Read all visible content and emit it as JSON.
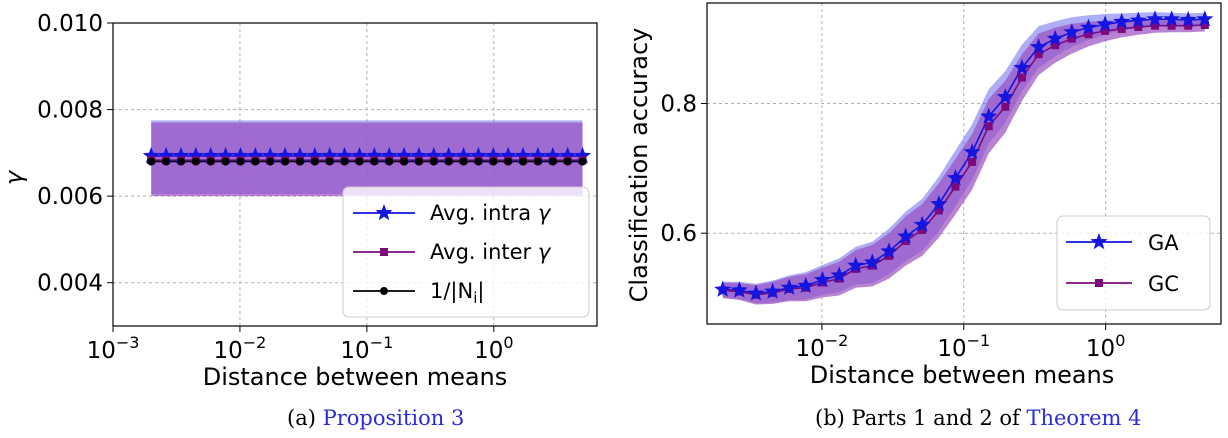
{
  "chart_data": [
    {
      "type": "line",
      "xlabel": "Distance between means",
      "ylabel": "γ",
      "xscale": "log",
      "xlim": [
        0.001,
        6.5
      ],
      "ylim": [
        0.003,
        0.01
      ],
      "xticks": [
        {
          "value": 0.001,
          "base": "10",
          "exp": "−3"
        },
        {
          "value": 0.01,
          "base": "10",
          "exp": "−2"
        },
        {
          "value": 0.1,
          "base": "10",
          "exp": "−1"
        },
        {
          "value": 1,
          "base": "10",
          "exp": "0"
        }
      ],
      "yticks": [
        {
          "value": 0.004,
          "label": "0.004"
        },
        {
          "value": 0.006,
          "label": "0.006"
        },
        {
          "value": 0.008,
          "label": "0.008"
        },
        {
          "value": 0.01,
          "label": "0.010"
        }
      ],
      "grid": true,
      "legend_position": "lower-right",
      "x_range": [
        0.002,
        5.0
      ],
      "n_points": 30,
      "series": [
        {
          "name": "Avg. intra γ",
          "label_main": "Avg. intra ",
          "label_greek": "γ",
          "value": 0.00693,
          "band": [
            0.00605,
            0.00775
          ],
          "color": "#1515e0",
          "band_color": "#6b6bf0",
          "marker": "star"
        },
        {
          "name": "Avg. inter γ",
          "label_main": "Avg. inter ",
          "label_greek": "γ",
          "value": 0.00683,
          "band": [
            0.006,
            0.0077
          ],
          "color": "#7d0a7d",
          "band_color": "#9a4fbf",
          "marker": "square"
        },
        {
          "name": "1/|Ni|",
          "label_main": "1/|N",
          "label_sub": "i",
          "label_end": "|",
          "value": 0.0068,
          "color": "#000000",
          "marker": "circle"
        }
      ],
      "caption_prefix": "(a) ",
      "caption_link": "Proposition 3"
    },
    {
      "type": "line",
      "xlabel": "Distance between means",
      "ylabel": "Classification accuracy",
      "xscale": "log",
      "xlim": [
        0.00155,
        6.5
      ],
      "ylim": [
        0.46,
        0.955
      ],
      "xticks": [
        {
          "value": 0.01,
          "base": "10",
          "exp": "−2"
        },
        {
          "value": 0.1,
          "base": "10",
          "exp": "−1"
        },
        {
          "value": 1,
          "base": "10",
          "exp": "0"
        }
      ],
      "yticks": [
        {
          "value": 0.6,
          "label": "0.6"
        },
        {
          "value": 0.8,
          "label": "0.8"
        }
      ],
      "grid": true,
      "legend_position": "lower-right",
      "x_range": [
        0.002,
        5.0
      ],
      "series": [
        {
          "name": "GA",
          "color": "#1515e0",
          "band_color": "#6b6bf0",
          "marker": "star",
          "values": [
            0.513,
            0.512,
            0.507,
            0.51,
            0.516,
            0.519,
            0.528,
            0.535,
            0.55,
            0.555,
            0.572,
            0.595,
            0.613,
            0.645,
            0.685,
            0.725,
            0.78,
            0.81,
            0.855,
            0.887,
            0.9,
            0.91,
            0.917,
            0.922,
            0.926,
            0.928,
            0.93,
            0.93,
            0.929,
            0.93
          ],
          "band_half": [
            0.012,
            0.013,
            0.015,
            0.017,
            0.019,
            0.021,
            0.023,
            0.026,
            0.029,
            0.032,
            0.035,
            0.038,
            0.04,
            0.042,
            0.043,
            0.043,
            0.042,
            0.04,
            0.036,
            0.032,
            0.027,
            0.023,
            0.019,
            0.016,
            0.013,
            0.012,
            0.011,
            0.01,
            0.01,
            0.01
          ]
        },
        {
          "name": "GC",
          "color": "#7d0a7d",
          "band_color": "#9a4fbf",
          "marker": "square",
          "values": [
            0.512,
            0.51,
            0.505,
            0.508,
            0.514,
            0.516,
            0.524,
            0.53,
            0.545,
            0.55,
            0.565,
            0.588,
            0.605,
            0.635,
            0.672,
            0.71,
            0.765,
            0.795,
            0.84,
            0.876,
            0.89,
            0.9,
            0.907,
            0.912,
            0.915,
            0.918,
            0.92,
            0.92,
            0.92,
            0.921
          ],
          "band_half": [
            0.012,
            0.013,
            0.015,
            0.017,
            0.019,
            0.021,
            0.023,
            0.026,
            0.029,
            0.032,
            0.035,
            0.038,
            0.04,
            0.042,
            0.043,
            0.043,
            0.042,
            0.04,
            0.036,
            0.032,
            0.027,
            0.023,
            0.019,
            0.016,
            0.013,
            0.012,
            0.011,
            0.01,
            0.01,
            0.01
          ]
        }
      ],
      "caption_prefix": "(b) Parts 1 and 2 of ",
      "caption_link": "Theorem 4"
    }
  ]
}
